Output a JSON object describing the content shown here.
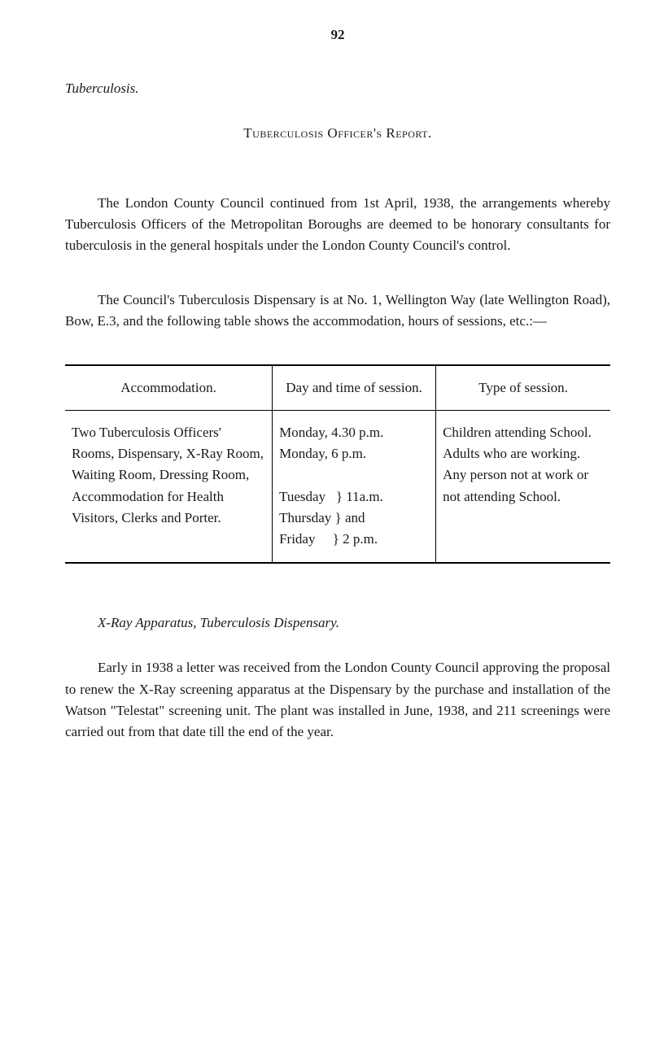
{
  "pageNumber": "92",
  "sectionLabel": "Tuberculosis.",
  "reportTitle": "Tuberculosis Officer's Report.",
  "para1": "The London County Council continued from 1st April, 1938, the arrangements whereby Tuberculosis Officers of the Metropolitan Boroughs are deemed to be honorary consultants for tuberculosis in the general hospitals under the London County Council's control.",
  "para2": "The Council's Tuberculosis Dispensary is at No. 1, Wellington Way (late Wellington Road), Bow, E.3, and the following table shows the accommodation, hours of sessions, etc.:—",
  "table": {
    "headers": [
      "Accommodation.",
      "Day and time of session.",
      "Type of session."
    ],
    "col1": "Two Tuberculosis Officers' Rooms, Dispensary, X-Ray Room, Waiting Room, Dressing Room, Accommodation for Health Visitors, Clerks and Porter.",
    "col2": "Monday, 4.30 p.m. Monday, 6 p.m. Tuesday Thursday Friday 11a.m. and 2 p.m.",
    "col3": "Children attending School. Adults who are working. Any person not at work or not attending School.",
    "col2_html": "Monday, 4.30 p.m.<br>Monday, 6 p.m.<br><br>Tuesday &nbsp;&nbsp;} 11a.m.<br>Thursday }&nbsp;and<br>Friday &nbsp;&nbsp;&nbsp;&nbsp;} 2 p.m.",
    "col3_html": "Children attending School.<br>Adults who are working.<br>Any person not at work or not at­tending School."
  },
  "subTitle": "X-Ray Apparatus, Tuberculosis Dispensary.",
  "para3": "Early in 1938 a letter was received from the London County Council approving the proposal to renew the X-Ray screening apparatus at the Dispensary by the purchase and installation of the Watson \"Telestat\" screening unit. The plant was installed in June, 1938, and 211 screenings were carried out from that date till the end of the year."
}
